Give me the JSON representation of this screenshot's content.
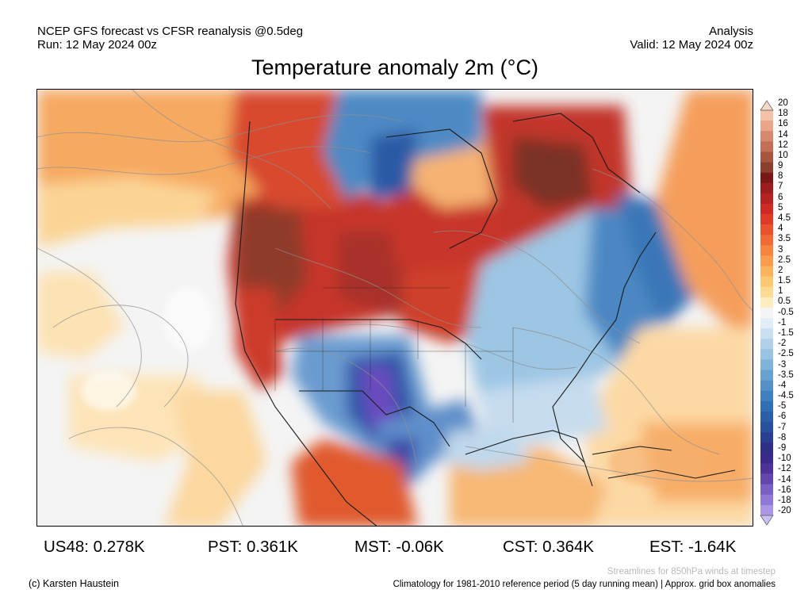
{
  "header": {
    "left_line1": "NCEP GFS forecast vs CFSR reanalysis @0.5deg",
    "left_line2": "Run: 12 May 2024 00z",
    "right_line1": "Analysis",
    "right_line2": "Valid: 12 May 2024 00z"
  },
  "title": "Temperature anomaly 2m (°C)",
  "colorbar": {
    "labels": [
      "20",
      "18",
      "16",
      "14",
      "12",
      "10",
      "9",
      "8",
      "7",
      "6",
      "5",
      "4.5",
      "4",
      "3.5",
      "3",
      "2.5",
      "2",
      "1.5",
      "1",
      "0.5",
      "-0.5",
      "-1",
      "-1.5",
      "-2",
      "-2.5",
      "-3",
      "-3.5",
      "-4",
      "-4.5",
      "-5",
      "-6",
      "-7",
      "-8",
      "-9",
      "-10",
      "-12",
      "-14",
      "-16",
      "-18",
      "-20"
    ],
    "colors": {
      "strong_warm": "#6b2e1f",
      "warm_dark": "#a9242a",
      "warm": "#d7402a",
      "warm_mid": "#ef7a3b",
      "warm_light": "#f8bf6d",
      "warm_pale": "#fde7b6",
      "neutral": "#f6f6f6",
      "cool_pale": "#d6e8f4",
      "cool_light": "#9fc8e5",
      "cool": "#4f8fc6",
      "cool_dark": "#2c5ba8",
      "strong_cool": "#3a2a8e",
      "extreme_cool": "#8c70d8"
    }
  },
  "map": {
    "description_icon": "temperature-anomaly-map",
    "streamline_color": "#9a9a9a",
    "border_color": "#1a1a1a"
  },
  "stats": [
    {
      "label": "US48: 0.278K"
    },
    {
      "label": "PST: 0.361K"
    },
    {
      "label": "MST: -0.06K"
    },
    {
      "label": "CST: 0.364K"
    },
    {
      "label": "EST: -1.64K"
    }
  ],
  "footer": {
    "streamline_note": "Streamlines for 850hPa winds at timestep",
    "copyright": "(c) Karsten Haustein",
    "climatology_note": "Climatology for 1981-2010 reference period (5 day running mean) | Approx. grid box anomalies"
  }
}
